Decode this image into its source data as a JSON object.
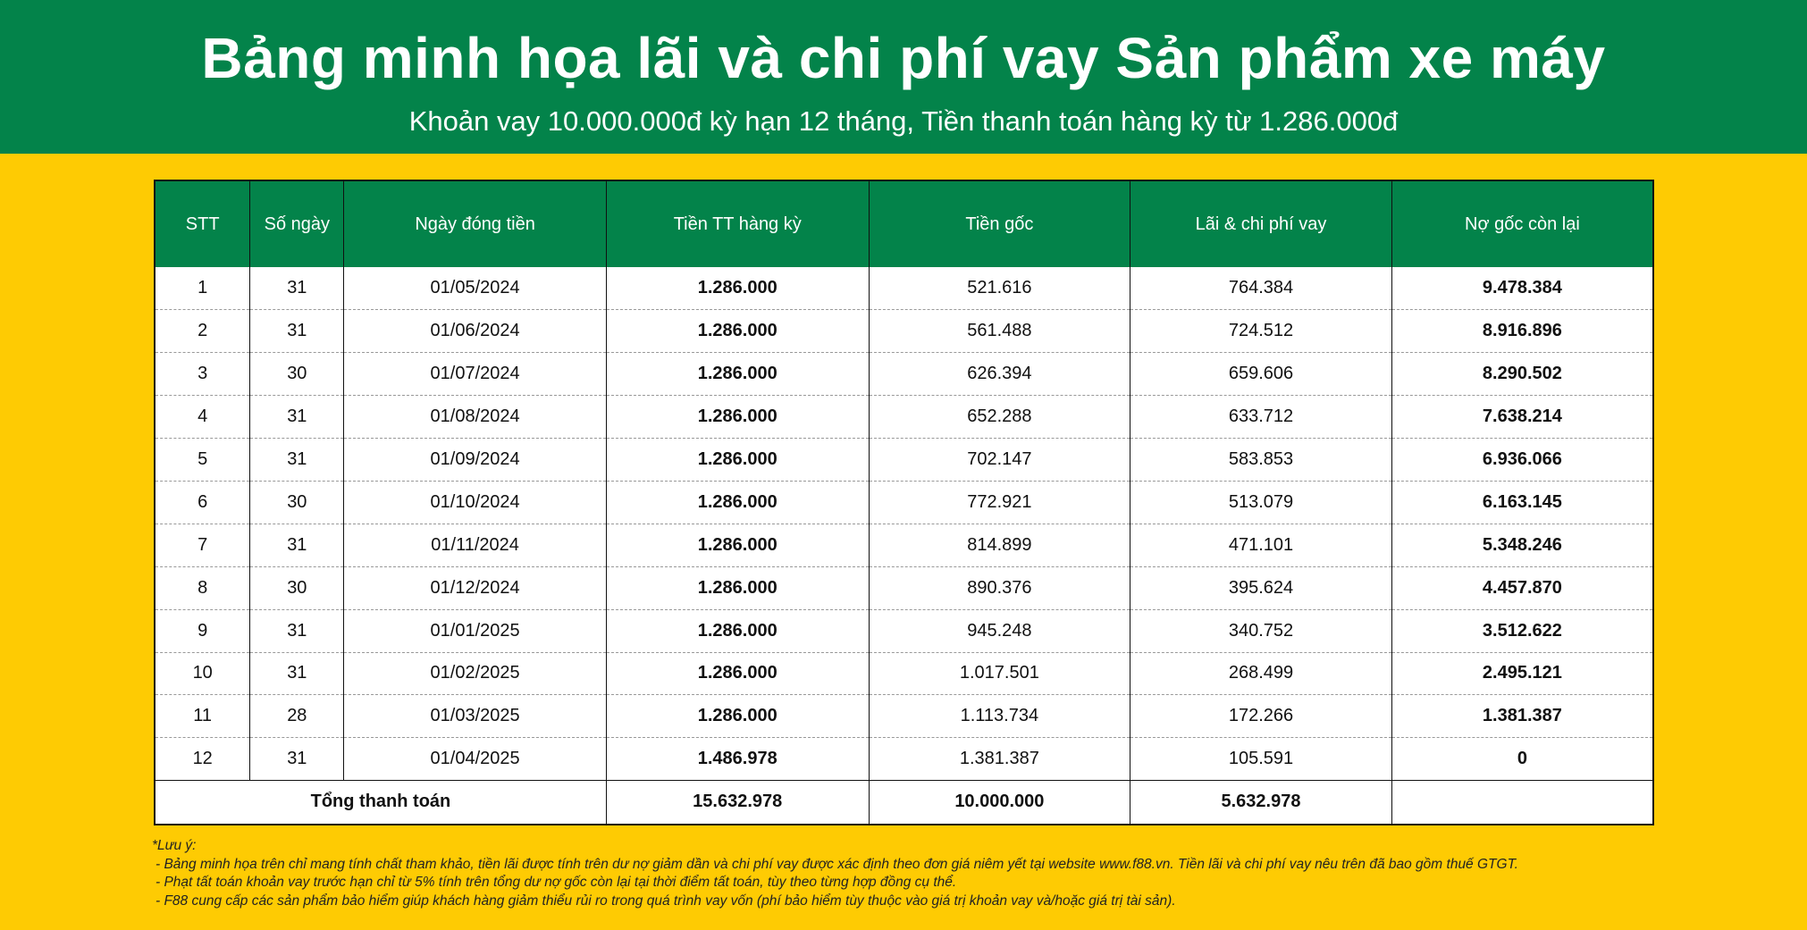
{
  "header": {
    "title": "Bảng minh họa lãi và chi phí vay Sản phẩm xe máy",
    "subtitle": "Khoản vay 10.000.000đ kỳ hạn 12 tháng, Tiền thanh toán hàng kỳ từ 1.286.000đ"
  },
  "table": {
    "columns": [
      "STT",
      "Số ngày",
      "Ngày đóng tiền",
      "Tiền TT hàng kỳ",
      "Tiền gốc",
      "Lãi & chi phí vay",
      "Nợ gốc còn lại"
    ],
    "rows": [
      [
        "1",
        "31",
        "01/05/2024",
        "1.286.000",
        "521.616",
        "764.384",
        "9.478.384"
      ],
      [
        "2",
        "31",
        "01/06/2024",
        "1.286.000",
        "561.488",
        "724.512",
        "8.916.896"
      ],
      [
        "3",
        "30",
        "01/07/2024",
        "1.286.000",
        "626.394",
        "659.606",
        "8.290.502"
      ],
      [
        "4",
        "31",
        "01/08/2024",
        "1.286.000",
        "652.288",
        "633.712",
        "7.638.214"
      ],
      [
        "5",
        "31",
        "01/09/2024",
        "1.286.000",
        "702.147",
        "583.853",
        "6.936.066"
      ],
      [
        "6",
        "30",
        "01/10/2024",
        "1.286.000",
        "772.921",
        "513.079",
        "6.163.145"
      ],
      [
        "7",
        "31",
        "01/11/2024",
        "1.286.000",
        "814.899",
        "471.101",
        "5.348.246"
      ],
      [
        "8",
        "30",
        "01/12/2024",
        "1.286.000",
        "890.376",
        "395.624",
        "4.457.870"
      ],
      [
        "9",
        "31",
        "01/01/2025",
        "1.286.000",
        "945.248",
        "340.752",
        "3.512.622"
      ],
      [
        "10",
        "31",
        "01/02/2025",
        "1.286.000",
        "1.017.501",
        "268.499",
        "2.495.121"
      ],
      [
        "11",
        "28",
        "01/03/2025",
        "1.286.000",
        "1.113.734",
        "172.266",
        "1.381.387"
      ],
      [
        "12",
        "31",
        "01/04/2025",
        "1.486.978",
        "1.381.387",
        "105.591",
        "0"
      ]
    ],
    "total": {
      "label": "Tổng thanh toán",
      "payment": "15.632.978",
      "principal": "10.000.000",
      "interest": "5.632.978",
      "remaining": ""
    }
  },
  "notes": {
    "heading": "*Lưu ý:",
    "items": [
      "- Bảng minh họa trên chỉ mang tính chất tham khảo, tiền lãi được tính trên dư nợ giảm dần và chi phí vay được xác định theo đơn giá niêm yết tại website www.f88.vn. Tiền lãi và chi phí vay nêu trên đã bao gồm thuế GTGT.",
      "- Phạt tất toán khoản vay trước hạn chỉ từ 5% tính trên tổng dư nợ gốc còn lại tại thời điểm tất toán, tùy theo từng hợp đồng cụ thể.",
      "- F88 cung cấp các sản phẩm bảo hiểm giúp khách hàng giảm thiểu rủi ro trong quá trình vay vốn (phí bảo hiểm tùy thuộc vào giá trị khoản vay và/hoặc giá trị tài sản)."
    ]
  },
  "colors": {
    "brand_green": "#03834A",
    "background_yellow": "#FECB03"
  }
}
